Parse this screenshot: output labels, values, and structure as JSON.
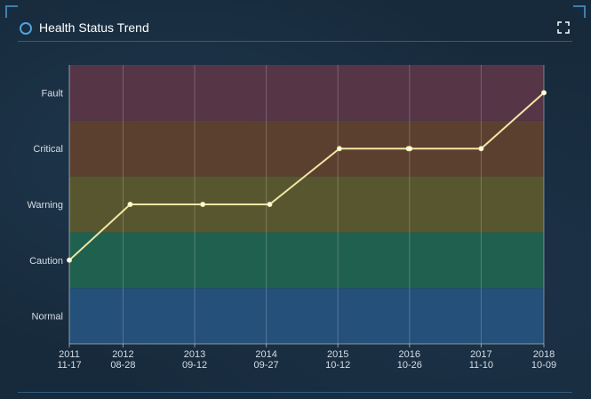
{
  "panel": {
    "title": "Health Status Trend",
    "expand_icon": "fullscreen-icon"
  },
  "chart_data": {
    "type": "line",
    "title": "",
    "xlabel": "",
    "ylabel": "",
    "categories": [
      "Normal",
      "Caution",
      "Warning",
      "Critical",
      "Fault"
    ],
    "band_colors": [
      "#24507a",
      "#20604f",
      "#58562f",
      "#5b4030",
      "#563547"
    ],
    "line_color": "#f1e7a3",
    "x_ticks": [
      {
        "year": "2011",
        "date": "11-17",
        "iso": "2011-11-17"
      },
      {
        "year": "2012",
        "date": "08-28",
        "iso": "2012-08-28"
      },
      {
        "year": "2013",
        "date": "09-12",
        "iso": "2013-09-12"
      },
      {
        "year": "2014",
        "date": "09-27",
        "iso": "2014-09-27"
      },
      {
        "year": "2015",
        "date": "10-12",
        "iso": "2015-10-12"
      },
      {
        "year": "2016",
        "date": "10-26",
        "iso": "2016-10-26"
      },
      {
        "year": "2017",
        "date": "11-10",
        "iso": "2017-11-10"
      },
      {
        "year": "2018",
        "date": "10-09",
        "iso": "2018-10-09"
      }
    ],
    "xlim": [
      "2011-11-17",
      "2018-10-09"
    ],
    "points": [
      {
        "x": "2011-11-17",
        "y": "Caution"
      },
      {
        "x": "2012-10-05",
        "y": "Warning"
      },
      {
        "x": "2013-10-25",
        "y": "Warning"
      },
      {
        "x": "2014-10-15",
        "y": "Warning"
      },
      {
        "x": "2015-10-20",
        "y": "Critical"
      },
      {
        "x": "2016-10-20",
        "y": "Critical"
      },
      {
        "x": "2016-10-28",
        "y": "Critical"
      },
      {
        "x": "2017-11-10",
        "y": "Critical"
      },
      {
        "x": "2018-10-09",
        "y": "Fault"
      }
    ],
    "grid": true,
    "legend": "none"
  }
}
